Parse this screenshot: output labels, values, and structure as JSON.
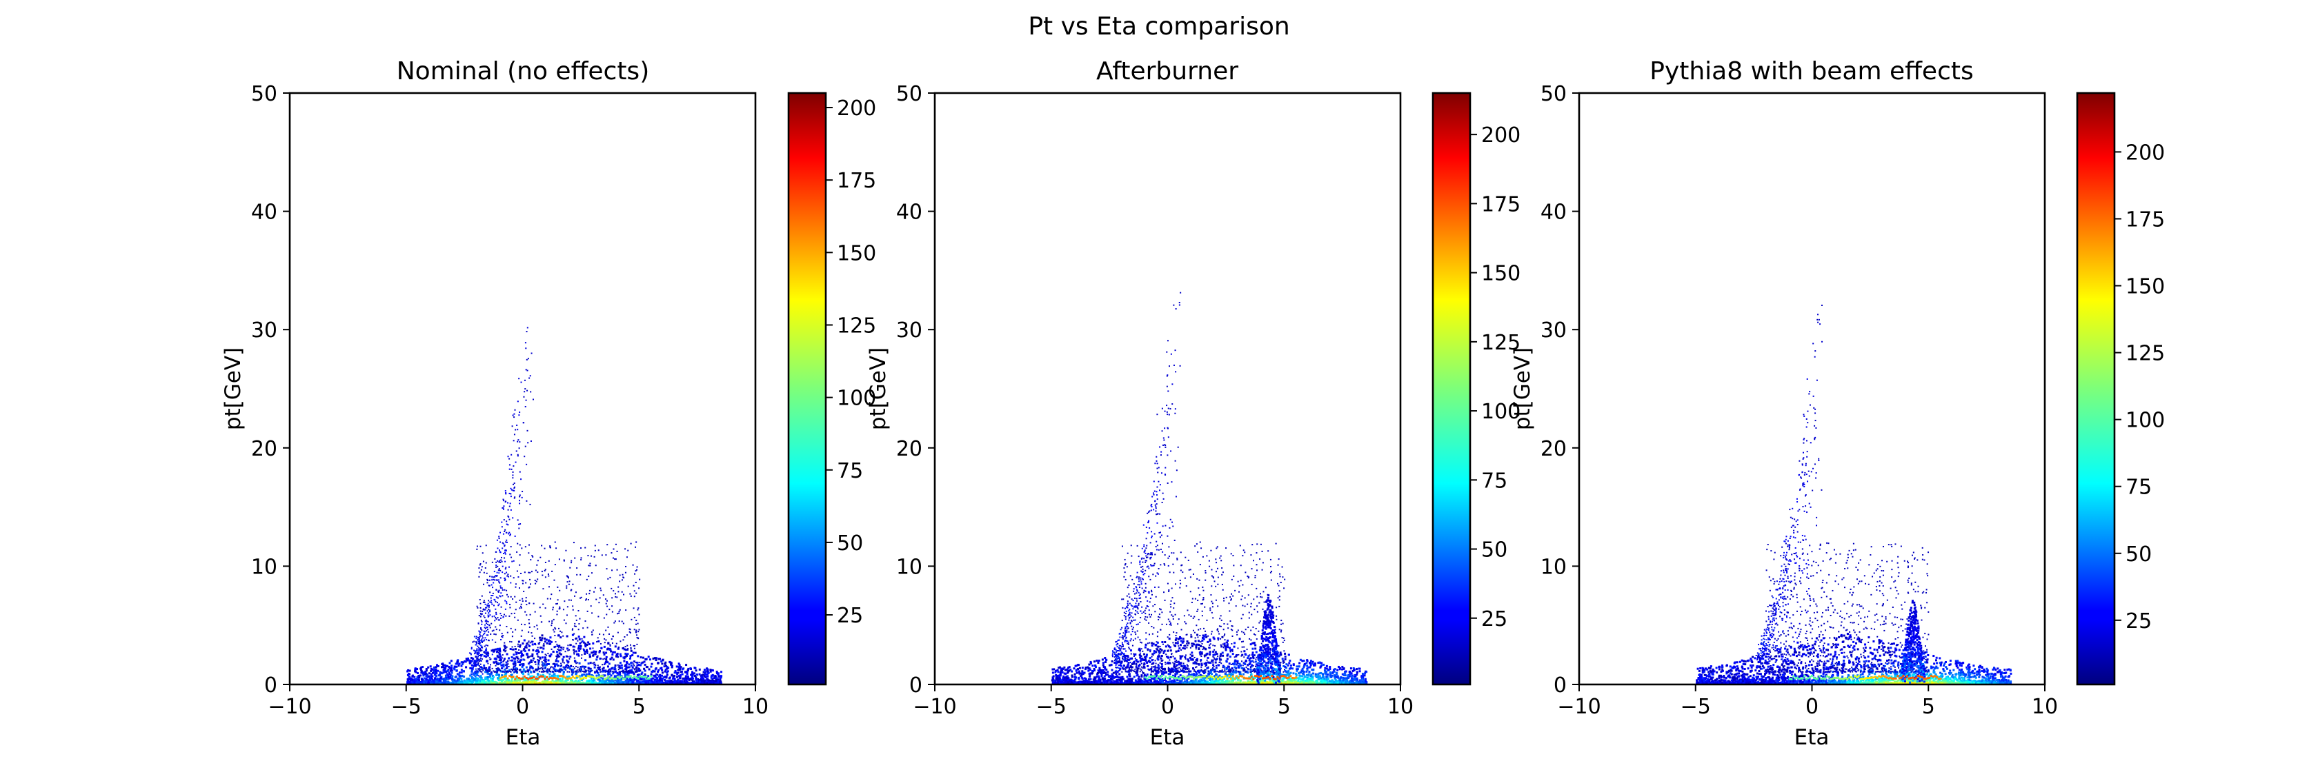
{
  "figure": {
    "suptitle": "Pt vs Eta comparison"
  },
  "chart_data": [
    {
      "type": "heatmap",
      "title": "Nominal (no effects)",
      "xlabel": "Eta",
      "ylabel": "pt[GeV]",
      "xlim": [
        -10,
        10
      ],
      "ylim": [
        0,
        50
      ],
      "xticks": [
        -10,
        -5,
        0,
        5,
        10
      ],
      "yticks": [
        0,
        10,
        20,
        30,
        40,
        50
      ],
      "grid": false,
      "colormap": "jet",
      "colorbar": {
        "min": 1,
        "max": 205,
        "ticks": [
          25,
          50,
          75,
          100,
          125,
          150,
          175,
          200
        ]
      },
      "distribution": {
        "ridge": [
          [
            -2.2,
            2.5
          ],
          [
            -1.8,
            5
          ],
          [
            -1.4,
            8
          ],
          [
            -1.0,
            12
          ],
          [
            -0.8,
            15
          ],
          [
            -0.6,
            18
          ],
          [
            -0.4,
            21
          ],
          [
            -0.2,
            25
          ],
          [
            0.0,
            28
          ],
          [
            0.2,
            33
          ],
          [
            0.3,
            35.5
          ]
        ],
        "forward_peak": null,
        "eta_range": [
          -5,
          8.5
        ],
        "peak_bin_eta": 0.5
      }
    },
    {
      "type": "heatmap",
      "title": "Afterburner",
      "xlabel": "Eta",
      "ylabel": "pt[GeV]",
      "xlim": [
        -10,
        10
      ],
      "ylim": [
        0,
        50
      ],
      "xticks": [
        -10,
        -5,
        0,
        5,
        10
      ],
      "yticks": [
        0,
        10,
        20,
        30,
        40,
        50
      ],
      "grid": false,
      "colormap": "jet",
      "colorbar": {
        "min": 1,
        "max": 215,
        "ticks": [
          25,
          50,
          75,
          100,
          125,
          150,
          175,
          200
        ]
      },
      "distribution": {
        "ridge": [
          [
            -2.3,
            2.5
          ],
          [
            -1.9,
            5
          ],
          [
            -1.5,
            8
          ],
          [
            -1.1,
            12
          ],
          [
            -0.8,
            15
          ],
          [
            -0.5,
            19
          ],
          [
            -0.3,
            23
          ],
          [
            0.0,
            27
          ],
          [
            0.2,
            31
          ],
          [
            0.4,
            36
          ]
        ],
        "forward_peak": {
          "eta": 4.3,
          "pt_max": 7.5
        },
        "eta_range": [
          -5,
          8.5
        ],
        "peak_bin_eta": 4.3
      }
    },
    {
      "type": "heatmap",
      "title": "Pythia8 with beam effects",
      "xlabel": "Eta",
      "ylabel": "pt[GeV]",
      "xlim": [
        -10,
        10
      ],
      "ylim": [
        0,
        50
      ],
      "xticks": [
        -10,
        -5,
        0,
        5,
        10
      ],
      "yticks": [
        0,
        10,
        20,
        30,
        40,
        50
      ],
      "grid": false,
      "colormap": "jet",
      "colorbar": {
        "min": 1,
        "max": 222,
        "ticks": [
          25,
          50,
          75,
          100,
          125,
          150,
          175,
          200
        ]
      },
      "distribution": {
        "ridge": [
          [
            -2.3,
            2.5
          ],
          [
            -1.9,
            5
          ],
          [
            -1.5,
            8
          ],
          [
            -1.1,
            12
          ],
          [
            -0.8,
            15
          ],
          [
            -0.5,
            19
          ],
          [
            -0.3,
            23
          ],
          [
            -0.1,
            27
          ],
          [
            0.1,
            31
          ],
          [
            0.4,
            34.5
          ]
        ],
        "forward_peak": {
          "eta": 4.3,
          "pt_max": 7
        },
        "eta_range": [
          -5,
          8.5
        ],
        "peak_bin_eta": 4.3
      }
    }
  ]
}
